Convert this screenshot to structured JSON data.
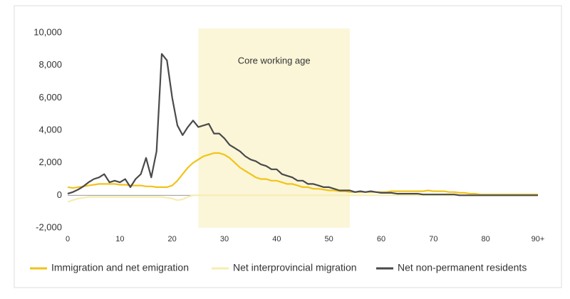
{
  "chart_data": {
    "type": "line",
    "x": [
      0,
      1,
      2,
      3,
      4,
      5,
      6,
      7,
      8,
      9,
      10,
      11,
      12,
      13,
      14,
      15,
      16,
      17,
      18,
      19,
      20,
      21,
      22,
      23,
      24,
      25,
      26,
      27,
      28,
      29,
      30,
      31,
      32,
      33,
      34,
      35,
      36,
      37,
      38,
      39,
      40,
      41,
      42,
      43,
      44,
      45,
      46,
      47,
      48,
      49,
      50,
      51,
      52,
      53,
      54,
      55,
      56,
      57,
      58,
      59,
      60,
      61,
      62,
      63,
      64,
      65,
      66,
      67,
      68,
      69,
      70,
      71,
      72,
      73,
      74,
      75,
      76,
      77,
      78,
      79,
      80,
      81,
      82,
      83,
      84,
      85,
      86,
      87,
      88,
      89,
      90
    ],
    "series": [
      {
        "name": "Immigration and net emigration",
        "color": "#f2c318",
        "values": [
          500,
          450,
          500,
          550,
          600,
          650,
          700,
          700,
          700,
          700,
          650,
          650,
          600,
          600,
          600,
          550,
          550,
          500,
          500,
          500,
          600,
          900,
          1300,
          1700,
          2000,
          2200,
          2400,
          2500,
          2600,
          2600,
          2500,
          2300,
          2000,
          1700,
          1500,
          1300,
          1100,
          1000,
          1000,
          900,
          900,
          800,
          700,
          700,
          600,
          500,
          500,
          400,
          400,
          350,
          300,
          300,
          250,
          250,
          200,
          200,
          200,
          200,
          200,
          200,
          200,
          200,
          250,
          250,
          250,
          250,
          250,
          250,
          250,
          300,
          250,
          250,
          250,
          200,
          200,
          150,
          150,
          100,
          100,
          50,
          50,
          50,
          50,
          50,
          50,
          50,
          50,
          50,
          50,
          50,
          50
        ]
      },
      {
        "name": "Net interprovincial migration",
        "color": "#f7ecb0",
        "values": [
          -400,
          -300,
          -200,
          -150,
          -100,
          -100,
          -100,
          -100,
          -100,
          -100,
          -100,
          -100,
          -100,
          -100,
          -100,
          -100,
          -100,
          -100,
          -100,
          -150,
          -200,
          -300,
          -250,
          -100,
          0,
          0,
          0,
          0,
          0,
          0,
          0,
          0,
          0,
          0,
          0,
          0,
          0,
          0,
          0,
          0,
          0,
          0,
          0,
          0,
          0,
          0,
          0,
          0,
          0,
          0,
          0,
          0,
          0,
          0,
          0,
          0,
          0,
          0,
          0,
          0,
          0,
          0,
          0,
          0,
          0,
          0,
          0,
          0,
          0,
          0,
          0,
          0,
          0,
          0,
          0,
          0,
          0,
          0,
          0,
          0,
          0,
          0,
          0,
          0,
          0,
          0,
          0,
          0,
          0,
          0,
          0
        ]
      },
      {
        "name": "Net non-permanent residents",
        "color": "#4a4a4a",
        "values": [
          100,
          200,
          350,
          550,
          800,
          1000,
          1100,
          1300,
          800,
          900,
          800,
          1000,
          500,
          1000,
          1300,
          2300,
          1100,
          2700,
          8700,
          8300,
          6000,
          4300,
          3700,
          4200,
          4600,
          4200,
          4300,
          4400,
          3800,
          3800,
          3500,
          3100,
          2900,
          2700,
          2400,
          2200,
          2100,
          1900,
          1800,
          1600,
          1600,
          1300,
          1200,
          1100,
          900,
          900,
          700,
          700,
          600,
          500,
          500,
          400,
          300,
          300,
          300,
          200,
          250,
          200,
          250,
          200,
          150,
          150,
          150,
          100,
          100,
          100,
          100,
          100,
          50,
          50,
          50,
          50,
          50,
          50,
          50,
          0,
          0,
          0,
          0,
          0,
          0,
          0,
          0,
          0,
          0,
          0,
          0,
          0,
          0,
          0,
          0
        ]
      }
    ],
    "xlim": [
      0,
      90
    ],
    "xticks": [
      0,
      10,
      20,
      30,
      40,
      50,
      60,
      70,
      80,
      {
        "value": 90,
        "label": "90+"
      }
    ],
    "ylim": [
      -2000,
      10000
    ],
    "yticks": [
      {
        "value": -2000,
        "label": "-2,000"
      },
      0,
      {
        "value": 2000,
        "label": "2,000"
      },
      {
        "value": 4000,
        "label": "4,000"
      },
      {
        "value": 6000,
        "label": "6,000"
      },
      {
        "value": 8000,
        "label": "8,000"
      },
      {
        "value": 10000,
        "label": "10,000"
      }
    ],
    "shaded_region": {
      "from": 25,
      "to": 54,
      "label": "Core working age",
      "color": "#fbf6d8"
    },
    "legend": "bottom"
  }
}
